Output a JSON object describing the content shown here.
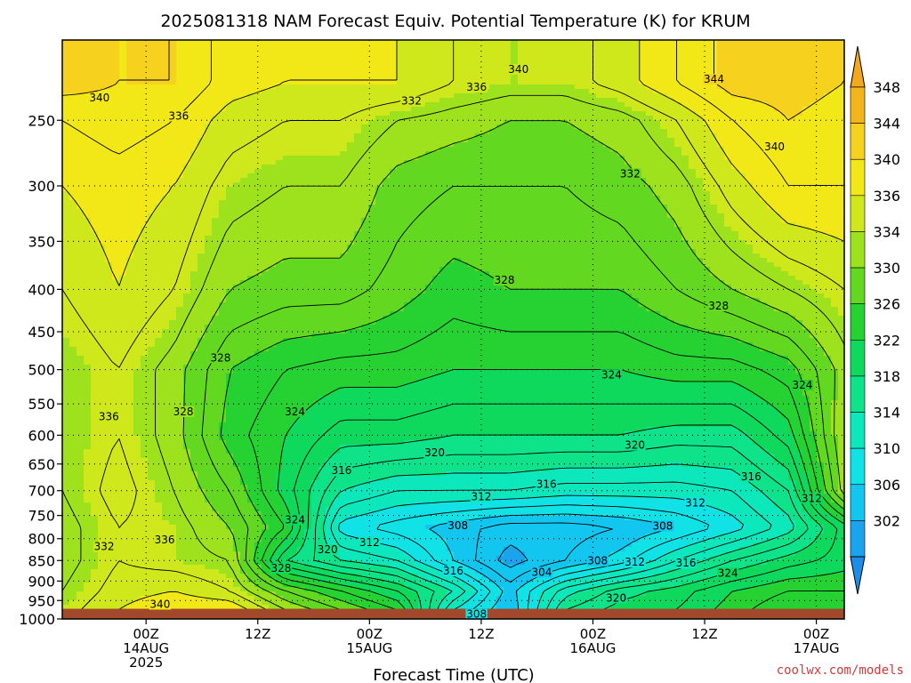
{
  "chart_data": {
    "type": "heatmap",
    "title": "2025081318 NAM Forecast Equiv. Potential Temperature (K) for KRUM",
    "xlabel": "Forecast Time (UTC)",
    "ylabel": "",
    "y_scale": "log",
    "y_reversed": true,
    "ylim": [
      1000,
      200
    ],
    "y_ticks": [
      "250",
      "300",
      "350",
      "400",
      "450",
      "500",
      "550",
      "600",
      "650",
      "700",
      "750",
      "800",
      "850",
      "900",
      "950",
      "1000"
    ],
    "x_range_hours": [
      -3,
      81
    ],
    "x_ticks": [
      {
        "hour": 6,
        "line1": "00Z",
        "line2": "14AUG",
        "line3": "2025"
      },
      {
        "hour": 18,
        "line1": "12Z",
        "line2": "",
        "line3": ""
      },
      {
        "hour": 30,
        "line1": "00Z",
        "line2": "15AUG",
        "line3": ""
      },
      {
        "hour": 42,
        "line1": "12Z",
        "line2": "",
        "line3": ""
      },
      {
        "hour": 54,
        "line1": "00Z",
        "line2": "16AUG",
        "line3": ""
      },
      {
        "hour": 66,
        "line1": "12Z",
        "line2": "",
        "line3": ""
      },
      {
        "hour": 78,
        "line1": "00Z",
        "line2": "17AUG",
        "line3": ""
      }
    ],
    "grid": true,
    "colorbar": {
      "position": "right",
      "labels": [
        "348",
        "344",
        "340",
        "336",
        "334",
        "330",
        "326",
        "322",
        "318",
        "314",
        "310",
        "306",
        "302"
      ],
      "bands": [
        {
          "min": 346,
          "max": 350,
          "color": "#f2b61c"
        },
        {
          "min": 342,
          "max": 346,
          "color": "#f6d21e"
        },
        {
          "min": 338,
          "max": 342,
          "color": "#f3e817"
        },
        {
          "min": 335,
          "max": 338,
          "color": "#cfe81b"
        },
        {
          "min": 332,
          "max": 335,
          "color": "#9ee21e"
        },
        {
          "min": 328,
          "max": 332,
          "color": "#62d820"
        },
        {
          "min": 324,
          "max": 328,
          "color": "#26d232"
        },
        {
          "min": 320,
          "max": 324,
          "color": "#0fd95c"
        },
        {
          "min": 316,
          "max": 320,
          "color": "#0ee38a"
        },
        {
          "min": 312,
          "max": 316,
          "color": "#0ce8bb"
        },
        {
          "min": 308,
          "max": 312,
          "color": "#10e2e6"
        },
        {
          "min": 304,
          "max": 308,
          "color": "#12c6f0"
        },
        {
          "min": 300,
          "max": 304,
          "color": "#1ba3ee"
        }
      ],
      "extend_top_color": "#f2a81a",
      "extend_bottom_color": "#1d8ee8"
    },
    "field_profiles": {
      "hours": [
        -3,
        3,
        9,
        15,
        21,
        27,
        33,
        39,
        45,
        51,
        57,
        63,
        69,
        75,
        81
      ],
      "levels": [
        225,
        250,
        300,
        400,
        500,
        600,
        700,
        775,
        850,
        925,
        975
      ],
      "values": [
        [
          343,
          342,
          342,
          339,
          338,
          338,
          338,
          336,
          335,
          335,
          337,
          340,
          343,
          343,
          342
        ],
        [
          340,
          341,
          340,
          337,
          336,
          336,
          334,
          333,
          332,
          332,
          333,
          336,
          340,
          342,
          341
        ],
        [
          338,
          339,
          338,
          335,
          334,
          334,
          331,
          330,
          330,
          330,
          331,
          333,
          337,
          340,
          340
        ],
        [
          336,
          338,
          336,
          332,
          331,
          331,
          329,
          327,
          328,
          328,
          328,
          330,
          332,
          334,
          336
        ],
        [
          334,
          336,
          333,
          328,
          326,
          325,
          325,
          324,
          324,
          324,
          324,
          325,
          325,
          327,
          333
        ],
        [
          334,
          336,
          333,
          327,
          324,
          321,
          321,
          320,
          320,
          320,
          320,
          319,
          319,
          323,
          334
        ],
        [
          334,
          337,
          334,
          330,
          323,
          316,
          314,
          314,
          314,
          313,
          313,
          313,
          314,
          318,
          333
        ],
        [
          333,
          336,
          335,
          332,
          326,
          311,
          309,
          307,
          305,
          305,
          306,
          308,
          311,
          315,
          323
        ],
        [
          333,
          336,
          335,
          334,
          320,
          316,
          314,
          308,
          303,
          306,
          309,
          314,
          318,
          321,
          323
        ],
        [
          334,
          337,
          338,
          336,
          330,
          326,
          322,
          316,
          307,
          315,
          319,
          321,
          324,
          326,
          326
        ],
        [
          335,
          338,
          340,
          340,
          334,
          330,
          326,
          312,
          306,
          318,
          321,
          322,
          325,
          328,
          328
        ]
      ]
    },
    "contour_labels": [
      {
        "text": "340",
        "hour": 1.0,
        "p": 235
      },
      {
        "text": "336",
        "hour": 9.5,
        "p": 247
      },
      {
        "text": "332",
        "hour": 34.5,
        "p": 237
      },
      {
        "text": "336",
        "hour": 41.5,
        "p": 228
      },
      {
        "text": "340",
        "hour": 46.0,
        "p": 217
      },
      {
        "text": "344",
        "hour": 67.0,
        "p": 223
      },
      {
        "text": "332",
        "hour": 58.0,
        "p": 290
      },
      {
        "text": "340",
        "hour": 73.5,
        "p": 269
      },
      {
        "text": "328",
        "hour": 44.5,
        "p": 390
      },
      {
        "text": "328",
        "hour": 67.5,
        "p": 419
      },
      {
        "text": "328",
        "hour": 14.0,
        "p": 484
      },
      {
        "text": "324",
        "hour": 56.0,
        "p": 507
      },
      {
        "text": "324",
        "hour": 76.5,
        "p": 522
      },
      {
        "text": "336",
        "hour": 2.0,
        "p": 570
      },
      {
        "text": "328",
        "hour": 10.0,
        "p": 562
      },
      {
        "text": "324",
        "hour": 22.0,
        "p": 562
      },
      {
        "text": "320",
        "hour": 37.0,
        "p": 630
      },
      {
        "text": "320",
        "hour": 58.5,
        "p": 617
      },
      {
        "text": "316",
        "hour": 27.0,
        "p": 662
      },
      {
        "text": "316",
        "hour": 49.0,
        "p": 688
      },
      {
        "text": "316",
        "hour": 71.0,
        "p": 673
      },
      {
        "text": "312",
        "hour": 42.0,
        "p": 712
      },
      {
        "text": "312",
        "hour": 65.0,
        "p": 724
      },
      {
        "text": "312",
        "hour": 77.5,
        "p": 715
      },
      {
        "text": "324",
        "hour": 22.0,
        "p": 759
      },
      {
        "text": "308",
        "hour": 39.5,
        "p": 771
      },
      {
        "text": "308",
        "hour": 61.5,
        "p": 772
      },
      {
        "text": "332",
        "hour": 1.5,
        "p": 818
      },
      {
        "text": "336",
        "hour": 8.0,
        "p": 802
      },
      {
        "text": "312",
        "hour": 30.0,
        "p": 808
      },
      {
        "text": "320",
        "hour": 25.5,
        "p": 825
      },
      {
        "text": "308",
        "hour": 54.5,
        "p": 851
      },
      {
        "text": "312",
        "hour": 58.5,
        "p": 854
      },
      {
        "text": "316",
        "hour": 64.0,
        "p": 856
      },
      {
        "text": "304",
        "hour": 48.5,
        "p": 878
      },
      {
        "text": "316",
        "hour": 39.0,
        "p": 875
      },
      {
        "text": "328",
        "hour": 20.5,
        "p": 869
      },
      {
        "text": "324",
        "hour": 68.5,
        "p": 880
      },
      {
        "text": "320",
        "hour": 56.5,
        "p": 943
      },
      {
        "text": "340",
        "hour": 7.5,
        "p": 960
      },
      {
        "text": "308",
        "hour": 41.5,
        "p": 987
      }
    ],
    "ground_color": "#a2492b"
  },
  "credit": "coolwx.com/models",
  "credit_color": "#d23a3a"
}
